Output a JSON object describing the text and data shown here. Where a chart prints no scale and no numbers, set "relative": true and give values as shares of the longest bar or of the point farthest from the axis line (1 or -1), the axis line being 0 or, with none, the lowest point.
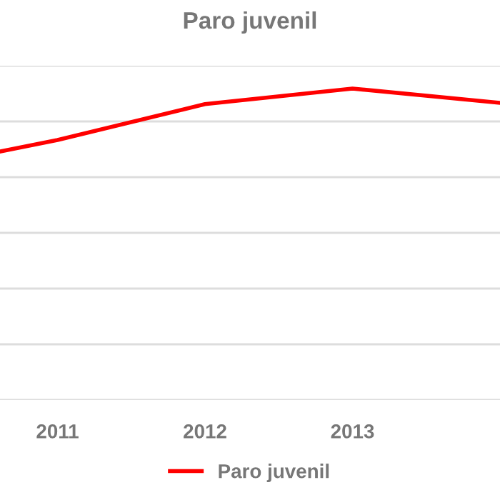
{
  "chart_data": {
    "type": "line",
    "title": "Paro juvenil",
    "relative": true,
    "x": [
      2010.61,
      2011,
      2012,
      2013,
      2014
    ],
    "xlim": [
      2010.61,
      2014
    ],
    "xticks": [
      2011,
      2012,
      2013
    ],
    "series": [
      {
        "name": "Paro juvenil",
        "color": "#ff0000",
        "values": [
          0.798,
          0.835,
          0.95,
          1,
          0.954
        ]
      }
    ],
    "grid": "y",
    "legend": "bottom",
    "marker": "none",
    "line_style": "solid"
  }
}
